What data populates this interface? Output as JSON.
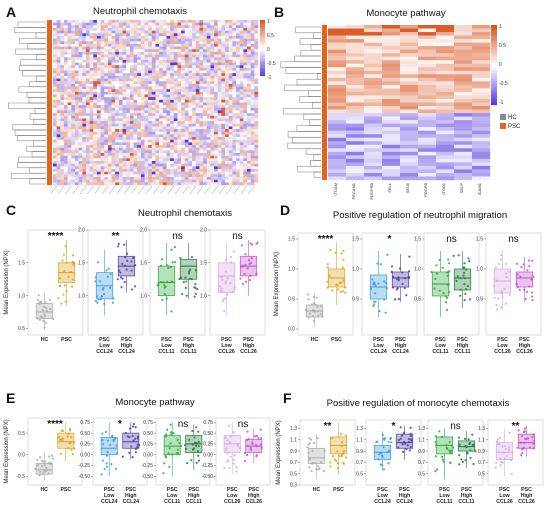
{
  "panels_top": [
    {
      "letter": "A",
      "title": "Neutrophil chemotaxis",
      "scale_ticks": [
        "1",
        "0.5",
        "0",
        "-0.5",
        "-1"
      ]
    },
    {
      "letter": "B",
      "title": "Monocyte pathway",
      "scale_ticks": [
        "1",
        "0.5",
        "0",
        "-0.5",
        "-1"
      ],
      "genes": [
        "ITGAM",
        "PECAM1",
        "PDGFRB",
        "SELL",
        "SELE",
        "PDGFB",
        "ITGB1",
        "SELP",
        "ICAM1"
      ],
      "legend": [
        {
          "label": "HC",
          "color": "#8a8a8a"
        },
        {
          "label": "PSC",
          "color": "#e0651c"
        }
      ]
    }
  ],
  "ylabel": "Mean Expression (NPX)",
  "colors": {
    "HC": "#a9a9a9",
    "PSC": "#d9a21b",
    "CCL24": "#3a9ad9",
    "CCL24b": "#4a3ea3",
    "CCL11": "#2aa83c",
    "CCL11b": "#1f7a3a",
    "CCL26": "#d8a8e0",
    "CCL26b": "#c44fcf",
    "heat_pos": "#d9531e",
    "heat_neg": "#4b2ee0"
  },
  "chart_data": [
    {
      "type": "box",
      "panel": "C",
      "title": "Neutrophil chemotaxis",
      "ylabel": "Mean Expression (NPX)",
      "subplots": [
        {
          "sig": "****",
          "ylim": [
            0.4,
            2.0
          ],
          "yticks": [
            "0.5",
            "1.0",
            "1.5"
          ],
          "groups": [
            {
              "label": [
                "HC"
              ],
              "color": "#a9a9a9",
              "median": 0.75,
              "q1": 0.65,
              "q3": 0.88,
              "min": 0.48,
              "max": 1.05
            },
            {
              "label": [
                "PSC"
              ],
              "color": "#d9a21b",
              "median": 1.35,
              "q1": 1.2,
              "q3": 1.5,
              "min": 0.85,
              "max": 1.85
            }
          ]
        },
        {
          "sig": "**",
          "ylim": [
            0.4,
            2.0
          ],
          "yticks": [
            "1.0",
            "1.5",
            "2.0"
          ],
          "groups": [
            {
              "label": [
                "PSC",
                "Low",
                "CCL24"
              ],
              "color": "#3a9ad9",
              "median": 1.15,
              "q1": 0.95,
              "q3": 1.35,
              "min": 0.7,
              "max": 1.7
            },
            {
              "label": [
                "PSC",
                "High",
                "CCL24"
              ],
              "color": "#4a3ea3",
              "median": 1.45,
              "q1": 1.3,
              "q3": 1.6,
              "min": 1.05,
              "max": 1.85
            }
          ]
        },
        {
          "sig": "ns",
          "ylim": [
            0.4,
            2.0
          ],
          "yticks": [
            "1.0",
            "1.5",
            "2.0"
          ],
          "groups": [
            {
              "label": [
                "PSC",
                "Low",
                "CCL11"
              ],
              "color": "#2aa83c",
              "median": 1.2,
              "q1": 1.0,
              "q3": 1.45,
              "min": 0.7,
              "max": 1.8
            },
            {
              "label": [
                "PSC",
                "High",
                "CCL11"
              ],
              "color": "#1f7a3a",
              "median": 1.45,
              "q1": 1.25,
              "q3": 1.55,
              "min": 0.95,
              "max": 1.8
            }
          ]
        },
        {
          "sig": "ns",
          "ylim": [
            0.4,
            2.0
          ],
          "yticks": [
            "1.0",
            "1.5",
            "2.0"
          ],
          "groups": [
            {
              "label": [
                "PSC",
                "Low",
                "CCL26"
              ],
              "color": "#d8a8e0",
              "median": 1.3,
              "q1": 1.05,
              "q3": 1.5,
              "min": 0.7,
              "max": 1.8
            },
            {
              "label": [
                "PSC",
                "High",
                "CCL26"
              ],
              "color": "#c44fcf",
              "median": 1.45,
              "q1": 1.3,
              "q3": 1.6,
              "min": 1.0,
              "max": 1.85
            }
          ]
        }
      ]
    },
    {
      "type": "box",
      "panel": "D",
      "title": "Positive regulation of neutrophil migration",
      "ylabel": "Mean Expression (NPX)",
      "subplots": [
        {
          "sig": "****",
          "ylim": [
            -0.1,
            1.6
          ],
          "yticks": [
            "0.0",
            "0.5",
            "1.0",
            "1.5"
          ],
          "groups": [
            {
              "label": [
                "HC"
              ],
              "color": "#a9a9a9",
              "median": 0.3,
              "q1": 0.2,
              "q3": 0.4,
              "min": 0.05,
              "max": 0.6
            },
            {
              "label": [
                "PSC"
              ],
              "color": "#d9a21b",
              "median": 0.85,
              "q1": 0.7,
              "q3": 1.0,
              "min": 0.4,
              "max": 1.45
            }
          ]
        },
        {
          "sig": "*",
          "ylim": [
            -0.1,
            1.6
          ],
          "yticks": [
            "0.5",
            "1.0",
            "1.5"
          ],
          "groups": [
            {
              "label": [
                "PSC",
                "Low",
                "CCL24"
              ],
              "color": "#3a9ad9",
              "median": 0.7,
              "q1": 0.5,
              "q3": 0.9,
              "min": 0.2,
              "max": 1.3
            },
            {
              "label": [
                "PSC",
                "High",
                "CCL24"
              ],
              "color": "#4a3ea3",
              "median": 0.85,
              "q1": 0.7,
              "q3": 0.95,
              "min": 0.45,
              "max": 1.25
            }
          ]
        },
        {
          "sig": "ns",
          "ylim": [
            -0.1,
            1.6
          ],
          "yticks": [
            "0.5",
            "1.0",
            "1.5"
          ],
          "groups": [
            {
              "label": [
                "PSC",
                "Low",
                "CCL11"
              ],
              "color": "#2aa83c",
              "median": 0.75,
              "q1": 0.55,
              "q3": 0.95,
              "min": 0.2,
              "max": 1.3
            },
            {
              "label": [
                "PSC",
                "High",
                "CCL11"
              ],
              "color": "#1f7a3a",
              "median": 0.85,
              "q1": 0.65,
              "q3": 1.0,
              "min": 0.35,
              "max": 1.3
            }
          ]
        },
        {
          "sig": "ns",
          "ylim": [
            -0.1,
            1.6
          ],
          "yticks": [
            "0.5",
            "1.0",
            "1.5"
          ],
          "groups": [
            {
              "label": [
                "PSC",
                "Low",
                "CCL26"
              ],
              "color": "#d8a8e0",
              "median": 0.8,
              "q1": 0.6,
              "q3": 1.0,
              "min": 0.3,
              "max": 1.3
            },
            {
              "label": [
                "PSC",
                "High",
                "CCL26"
              ],
              "color": "#c44fcf",
              "median": 0.85,
              "q1": 0.7,
              "q3": 0.95,
              "min": 0.45,
              "max": 1.2
            }
          ]
        }
      ]
    },
    {
      "type": "box",
      "panel": "E",
      "title": "Monocyte pathway",
      "ylabel": "Mean Expression (NPX)",
      "subplots": [
        {
          "sig": "****",
          "ylim": [
            -0.7,
            0.85
          ],
          "yticks": [
            "-0.5",
            "0.0",
            "0.5"
          ],
          "groups": [
            {
              "label": [
                "HC"
              ],
              "color": "#a9a9a9",
              "median": -0.35,
              "q1": -0.45,
              "q3": -0.2,
              "min": -0.6,
              "max": 0.05
            },
            {
              "label": [
                "PSC"
              ],
              "color": "#d9a21b",
              "median": 0.3,
              "q1": 0.15,
              "q3": 0.5,
              "min": -0.15,
              "max": 0.75
            }
          ]
        },
        {
          "sig": "*",
          "ylim": [
            -0.7,
            0.85
          ],
          "yticks": [
            "-0.50",
            "-0.25",
            "0.00",
            "0.25",
            "0.50",
            "0.75"
          ],
          "groups": [
            {
              "label": [
                "PSC",
                "Low",
                "CCL24"
              ],
              "color": "#3a9ad9",
              "median": 0.15,
              "q1": 0.0,
              "q3": 0.4,
              "min": -0.5,
              "max": 0.75
            },
            {
              "label": [
                "PSC",
                "High",
                "CCL24"
              ],
              "color": "#4a3ea3",
              "median": 0.3,
              "q1": 0.15,
              "q3": 0.5,
              "min": -0.1,
              "max": 0.75
            }
          ]
        },
        {
          "sig": "ns",
          "ylim": [
            -0.7,
            0.85
          ],
          "yticks": [
            "-0.50",
            "-0.25",
            "0.00",
            "0.25",
            "0.50",
            "0.75"
          ],
          "groups": [
            {
              "label": [
                "PSC",
                "Low",
                "CCL11"
              ],
              "color": "#2aa83c",
              "median": 0.2,
              "q1": 0.0,
              "q3": 0.45,
              "min": -0.5,
              "max": 0.75
            },
            {
              "label": [
                "PSC",
                "High",
                "CCL11"
              ],
              "color": "#1f7a3a",
              "median": 0.25,
              "q1": 0.05,
              "q3": 0.45,
              "min": -0.35,
              "max": 0.7
            }
          ]
        },
        {
          "sig": "ns",
          "ylim": [
            -0.7,
            0.85
          ],
          "yticks": [
            "-0.50",
            "-0.25",
            "0.00",
            "0.25",
            "0.50",
            "0.75"
          ],
          "groups": [
            {
              "label": [
                "PSC",
                "Low",
                "CCL26"
              ],
              "color": "#d8a8e0",
              "median": 0.25,
              "q1": 0.05,
              "q3": 0.45,
              "min": -0.45,
              "max": 0.75
            },
            {
              "label": [
                "PSC",
                "High",
                "CCL26"
              ],
              "color": "#c44fcf",
              "median": 0.2,
              "q1": 0.05,
              "q3": 0.35,
              "min": -0.2,
              "max": 0.6
            }
          ]
        }
      ]
    },
    {
      "type": "box",
      "panel": "F",
      "title": "Positive regulation of monocyte chemotaxis",
      "ylabel": "Mean Expression (NPX)",
      "subplots": [
        {
          "sig": "**",
          "ylim": [
            0.3,
            1.45
          ],
          "yticks": [
            "0.3",
            "0.5",
            "0.7",
            "0.9",
            "1.1",
            "1.3"
          ],
          "groups": [
            {
              "label": [
                "HC"
              ],
              "color": "#a9a9a9",
              "median": 0.78,
              "q1": 0.68,
              "q3": 0.95,
              "min": 0.4,
              "max": 1.2
            },
            {
              "label": [
                "PSC"
              ],
              "color": "#d9a21b",
              "median": 1.0,
              "q1": 0.85,
              "q3": 1.15,
              "min": 0.5,
              "max": 1.4
            }
          ]
        },
        {
          "sig": "*",
          "ylim": [
            0.3,
            1.45
          ],
          "yticks": [
            "0.5",
            "0.7",
            "0.9",
            "1.1",
            "1.3"
          ],
          "groups": [
            {
              "label": [
                "PSC",
                "Low",
                "CCL24"
              ],
              "color": "#3a9ad9",
              "median": 0.88,
              "q1": 0.75,
              "q3": 1.0,
              "min": 0.55,
              "max": 1.25
            },
            {
              "label": [
                "PSC",
                "High",
                "CCL24"
              ],
              "color": "#4a3ea3",
              "median": 1.05,
              "q1": 0.95,
              "q3": 1.2,
              "min": 0.75,
              "max": 1.35
            }
          ]
        },
        {
          "sig": "ns",
          "ylim": [
            0.3,
            1.45
          ],
          "yticks": [
            "0.5",
            "0.7",
            "0.9",
            "1.1",
            "1.3"
          ],
          "groups": [
            {
              "label": [
                "PSC",
                "Low",
                "CCL11"
              ],
              "color": "#2aa83c",
              "median": 1.0,
              "q1": 0.85,
              "q3": 1.15,
              "min": 0.4,
              "max": 1.3
            },
            {
              "label": [
                "PSC",
                "High",
                "CCL11"
              ],
              "color": "#1f7a3a",
              "median": 0.98,
              "q1": 0.9,
              "q3": 1.08,
              "min": 0.6,
              "max": 1.25
            }
          ]
        },
        {
          "sig": "**",
          "ylim": [
            0.3,
            1.45
          ],
          "yticks": [
            "0.5",
            "0.7",
            "0.9",
            "1.1",
            "1.3"
          ],
          "groups": [
            {
              "label": [
                "PSC",
                "Low",
                "CCL26"
              ],
              "color": "#d8a8e0",
              "median": 0.88,
              "q1": 0.75,
              "q3": 1.05,
              "min": 0.45,
              "max": 1.3
            },
            {
              "label": [
                "PSC",
                "High",
                "CCL26"
              ],
              "color": "#c44fcf",
              "median": 1.05,
              "q1": 0.95,
              "q3": 1.2,
              "min": 0.8,
              "max": 1.35
            }
          ]
        }
      ]
    }
  ]
}
